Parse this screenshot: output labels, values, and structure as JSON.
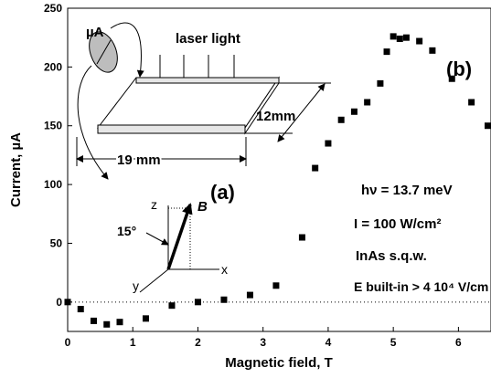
{
  "chart_data": {
    "type": "scatter",
    "xlabel": "Magnetic field, T",
    "ylabel": "Current, µA",
    "xlim": [
      0,
      6.5
    ],
    "ylim": [
      -25,
      250
    ],
    "xticks": [
      "0",
      "1",
      "2",
      "3",
      "4",
      "5",
      "6"
    ],
    "yticks": [
      "0",
      "50",
      "100",
      "150",
      "200",
      "250"
    ],
    "zero_line": "dotted",
    "series": [
      {
        "x": [
          0,
          0.2,
          0.4,
          0.6,
          0.8,
          1.2,
          1.6,
          2.0,
          2.4,
          2.8,
          3.2,
          3.6,
          3.8,
          4.0,
          4.2,
          4.4,
          4.6,
          4.8,
          4.9,
          5.0,
          5.1,
          5.2,
          5.4,
          5.6,
          5.9,
          6.2,
          6.5
        ],
        "y": [
          0,
          -6,
          -16,
          -19,
          -17,
          -14,
          -3,
          0,
          2,
          6,
          14,
          55,
          114,
          135,
          155,
          162,
          170,
          186,
          213,
          226,
          224,
          225,
          222,
          214,
          190,
          170,
          150
        ]
      }
    ],
    "annotations": {
      "a": "(a)",
      "b": "(b)",
      "energy": "hν = 13.7 meV",
      "intensity": "I = 100 W/cm²",
      "sample": "InAs s.q.w.",
      "field": "E built-in > 4 10⁴ V/cm"
    }
  },
  "inset": {
    "meter": "µA",
    "laser": "laser light",
    "width": "19 mm",
    "depth": "12mm",
    "angle": "15°",
    "vector": "B",
    "axis_z": "z",
    "axis_x": "x",
    "axis_y": "y"
  }
}
